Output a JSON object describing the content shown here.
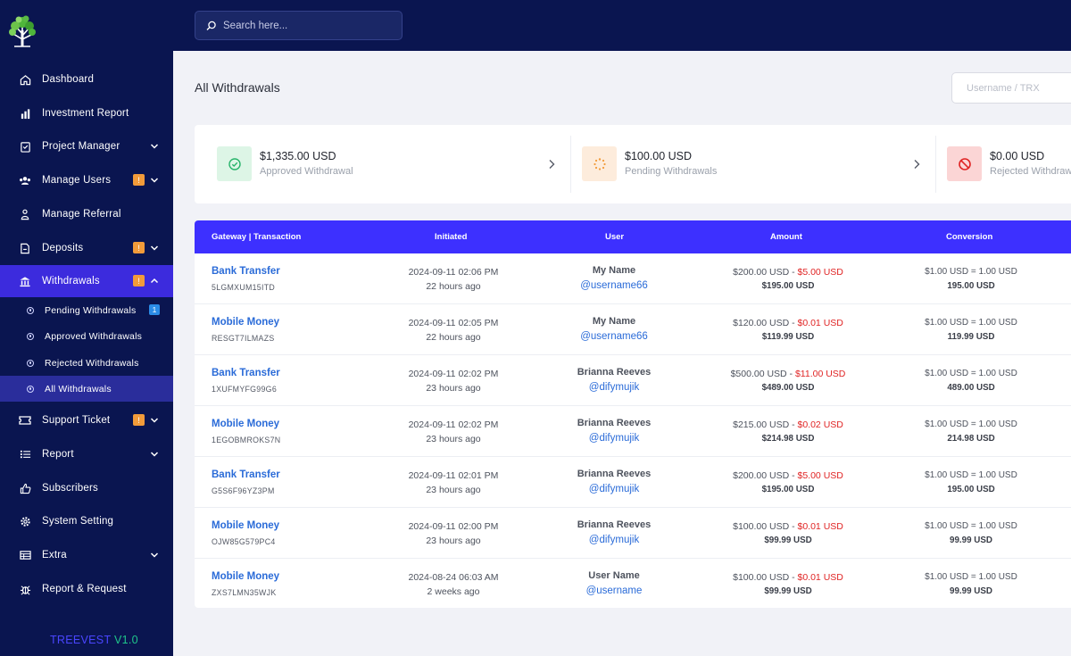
{
  "brand": {
    "name_part1": "TREEVEST",
    "name_part2": " V1.0"
  },
  "sidebar": {
    "items": [
      {
        "label": "Dashboard",
        "icon": "home-icon"
      },
      {
        "label": "Investment Report",
        "icon": "bar-chart-icon"
      },
      {
        "label": "Project Manager",
        "icon": "clipboard-icon"
      },
      {
        "label": "Manage Users",
        "icon": "users-icon",
        "badge": "!"
      },
      {
        "label": "Manage Referral",
        "icon": "referral-icon"
      },
      {
        "label": "Deposits",
        "icon": "deposit-icon",
        "badge": "!"
      },
      {
        "label": "Withdrawals",
        "icon": "bank-icon",
        "badge": "!"
      },
      {
        "label": "Support Ticket",
        "icon": "ticket-icon",
        "badge": "!"
      },
      {
        "label": "Report",
        "icon": "list-icon"
      },
      {
        "label": "Subscribers",
        "icon": "thumbs-up-icon"
      },
      {
        "label": "System Setting",
        "icon": "settings-icon"
      },
      {
        "label": "Extra",
        "icon": "extra-icon"
      },
      {
        "label": "Report & Request",
        "icon": "bug-icon"
      }
    ],
    "submenu": [
      {
        "label": "Pending Withdrawals",
        "badge": "1"
      },
      {
        "label": "Approved Withdrawals"
      },
      {
        "label": "Rejected Withdrawals"
      },
      {
        "label": "All Withdrawals"
      }
    ]
  },
  "search": {
    "placeholder": "Search here..."
  },
  "page": {
    "title": "All Withdrawals",
    "filter_placeholder": "Username / TRX"
  },
  "stats": [
    {
      "value": "$1,335.00 USD",
      "label": "Approved Withdrawal",
      "color": "#27b36a",
      "bg": "#ddf5e6"
    },
    {
      "value": "$100.00 USD",
      "label": "Pending Withdrawals",
      "color": "#f29b3a",
      "bg": "#fdecdc"
    },
    {
      "value": "$0.00 USD",
      "label": "Rejected Withdrawals",
      "color": "#e02424",
      "bg": "#fbd5d5"
    }
  ],
  "table": {
    "headers": [
      "Gateway | Transaction",
      "Initiated",
      "User",
      "Amount",
      "Conversion"
    ],
    "rows": [
      {
        "gateway": "Bank Transfer",
        "trx": "5LGMXUM15ITD",
        "date": "2024-09-11 02:06 PM",
        "ago": "22 hours ago",
        "name": "My Name",
        "handle": "@username66",
        "amount": "$200.00 USD - ",
        "charge": "$5.00 USD",
        "total": "$195.00 USD",
        "rate": "$1.00 USD = 1.00 USD",
        "converted": "195.00 USD"
      },
      {
        "gateway": "Mobile Money",
        "trx": "RESGT7ILMAZS",
        "date": "2024-09-11 02:05 PM",
        "ago": "22 hours ago",
        "name": "My Name",
        "handle": "@username66",
        "amount": "$120.00 USD - ",
        "charge": "$0.01 USD",
        "total": "$119.99 USD",
        "rate": "$1.00 USD = 1.00 USD",
        "converted": "119.99 USD"
      },
      {
        "gateway": "Bank Transfer",
        "trx": "1XUFMYFG99G6",
        "date": "2024-09-11 02:02 PM",
        "ago": "23 hours ago",
        "name": "Brianna Reeves",
        "handle": "@difymujik",
        "amount": "$500.00 USD - ",
        "charge": "$11.00 USD",
        "total": "$489.00 USD",
        "rate": "$1.00 USD = 1.00 USD",
        "converted": "489.00 USD"
      },
      {
        "gateway": "Mobile Money",
        "trx": "1EGOBMROKS7N",
        "date": "2024-09-11 02:02 PM",
        "ago": "23 hours ago",
        "name": "Brianna Reeves",
        "handle": "@difymujik",
        "amount": "$215.00 USD - ",
        "charge": "$0.02 USD",
        "total": "$214.98 USD",
        "rate": "$1.00 USD = 1.00 USD",
        "converted": "214.98 USD"
      },
      {
        "gateway": "Bank Transfer",
        "trx": "G5S6F96YZ3PM",
        "date": "2024-09-11 02:01 PM",
        "ago": "23 hours ago",
        "name": "Brianna Reeves",
        "handle": "@difymujik",
        "amount": "$200.00 USD - ",
        "charge": "$5.00 USD",
        "total": "$195.00 USD",
        "rate": "$1.00 USD = 1.00 USD",
        "converted": "195.00 USD"
      },
      {
        "gateway": "Mobile Money",
        "trx": "OJW85G579PC4",
        "date": "2024-09-11 02:00 PM",
        "ago": "23 hours ago",
        "name": "Brianna Reeves",
        "handle": "@difymujik",
        "amount": "$100.00 USD - ",
        "charge": "$0.01 USD",
        "total": "$99.99 USD",
        "rate": "$1.00 USD = 1.00 USD",
        "converted": "99.99 USD"
      },
      {
        "gateway": "Mobile Money",
        "trx": "ZXS7LMN35WJK",
        "date": "2024-08-24 06:03 AM",
        "ago": "2 weeks ago",
        "name": "User Name",
        "handle": "@username",
        "amount": "$100.00 USD - ",
        "charge": "$0.01 USD",
        "total": "$99.99 USD",
        "rate": "$1.00 USD = 1.00 USD",
        "converted": "99.99 USD"
      }
    ]
  },
  "colors": {
    "sidebar_bg": "#0a1550",
    "accent": "#3d30ff",
    "link": "#2a6bd8",
    "charge": "#e02424"
  }
}
